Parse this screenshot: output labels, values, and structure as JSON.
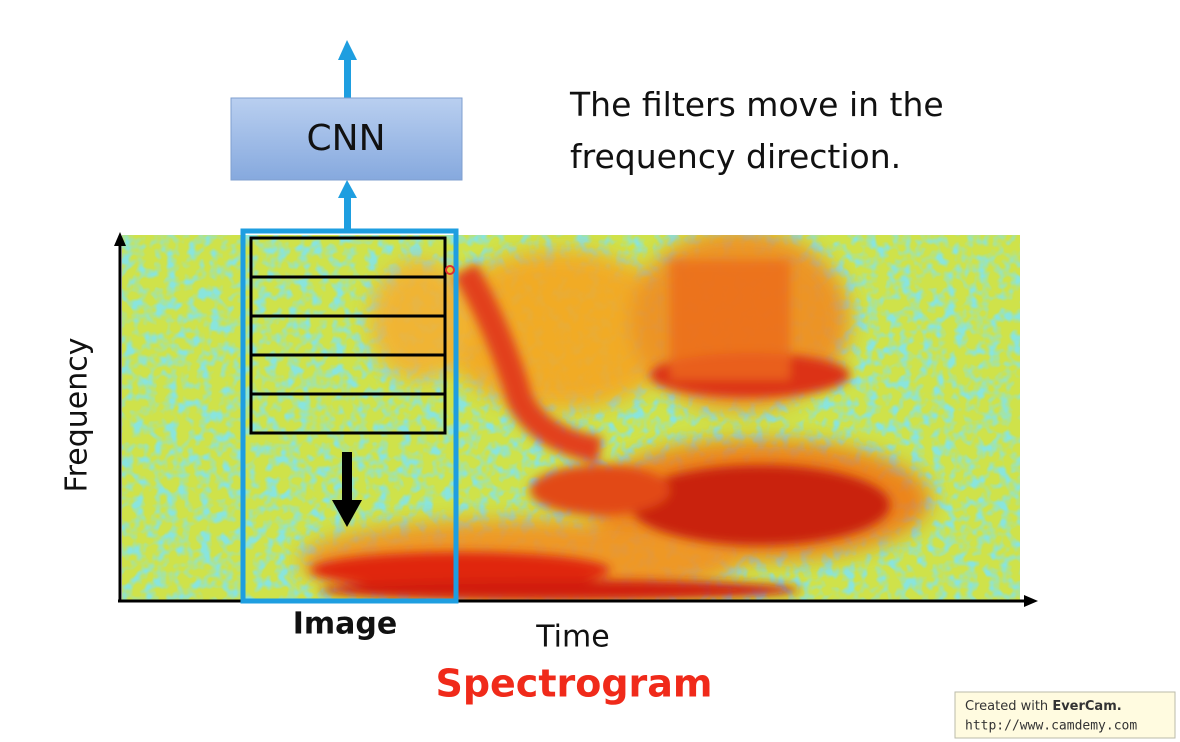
{
  "cnn_label": "CNN",
  "caption": {
    "lines": [
      "The filters move in the",
      "frequency direction."
    ]
  },
  "axes": {
    "y_label": "Frequency",
    "x_label": "Time"
  },
  "image_label": "Image",
  "title": "Spectrogram",
  "watermark": {
    "prefix": "Created with",
    "brand": "EverCam.",
    "url": "http://www.camdemy.com"
  }
}
